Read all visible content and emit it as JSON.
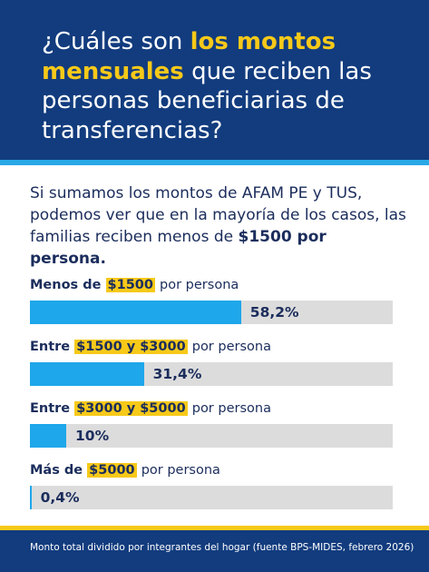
{
  "chart_data": {
    "type": "hbar",
    "title": {
      "before": "¿Cuáles son",
      "highlight": "los montos mensuales",
      "after": "que reciben las personas beneficiarias de transferencias?"
    },
    "subtitle": {
      "text": "Si sumamos los montos de AFAM PE y TUS, podemos ver que en la mayoría de los casos, las familias reciben menos de",
      "bold": "$1500 por persona."
    },
    "categories": [
      {
        "before": "Menos de",
        "highlight": "$1500",
        "after": "por persona"
      },
      {
        "before": "Entre",
        "highlight": "$1500 y $3000",
        "after": "por persona"
      },
      {
        "before": "Entre",
        "highlight": "$3000 y $5000",
        "after": "por persona"
      },
      {
        "before": "Más de",
        "highlight": "$5000",
        "after": "por persona"
      }
    ],
    "values": [
      58.2,
      31.4,
      10,
      0.4
    ],
    "value_labels": [
      "58,2%",
      "31,4%",
      "10%",
      "0,4%"
    ],
    "xlim": [
      0,
      100
    ],
    "color": "#1ea7ea",
    "footnote": "Monto total dividido por integrantes del hogar (fuente BPS-MIDES, febrero 2026)"
  }
}
